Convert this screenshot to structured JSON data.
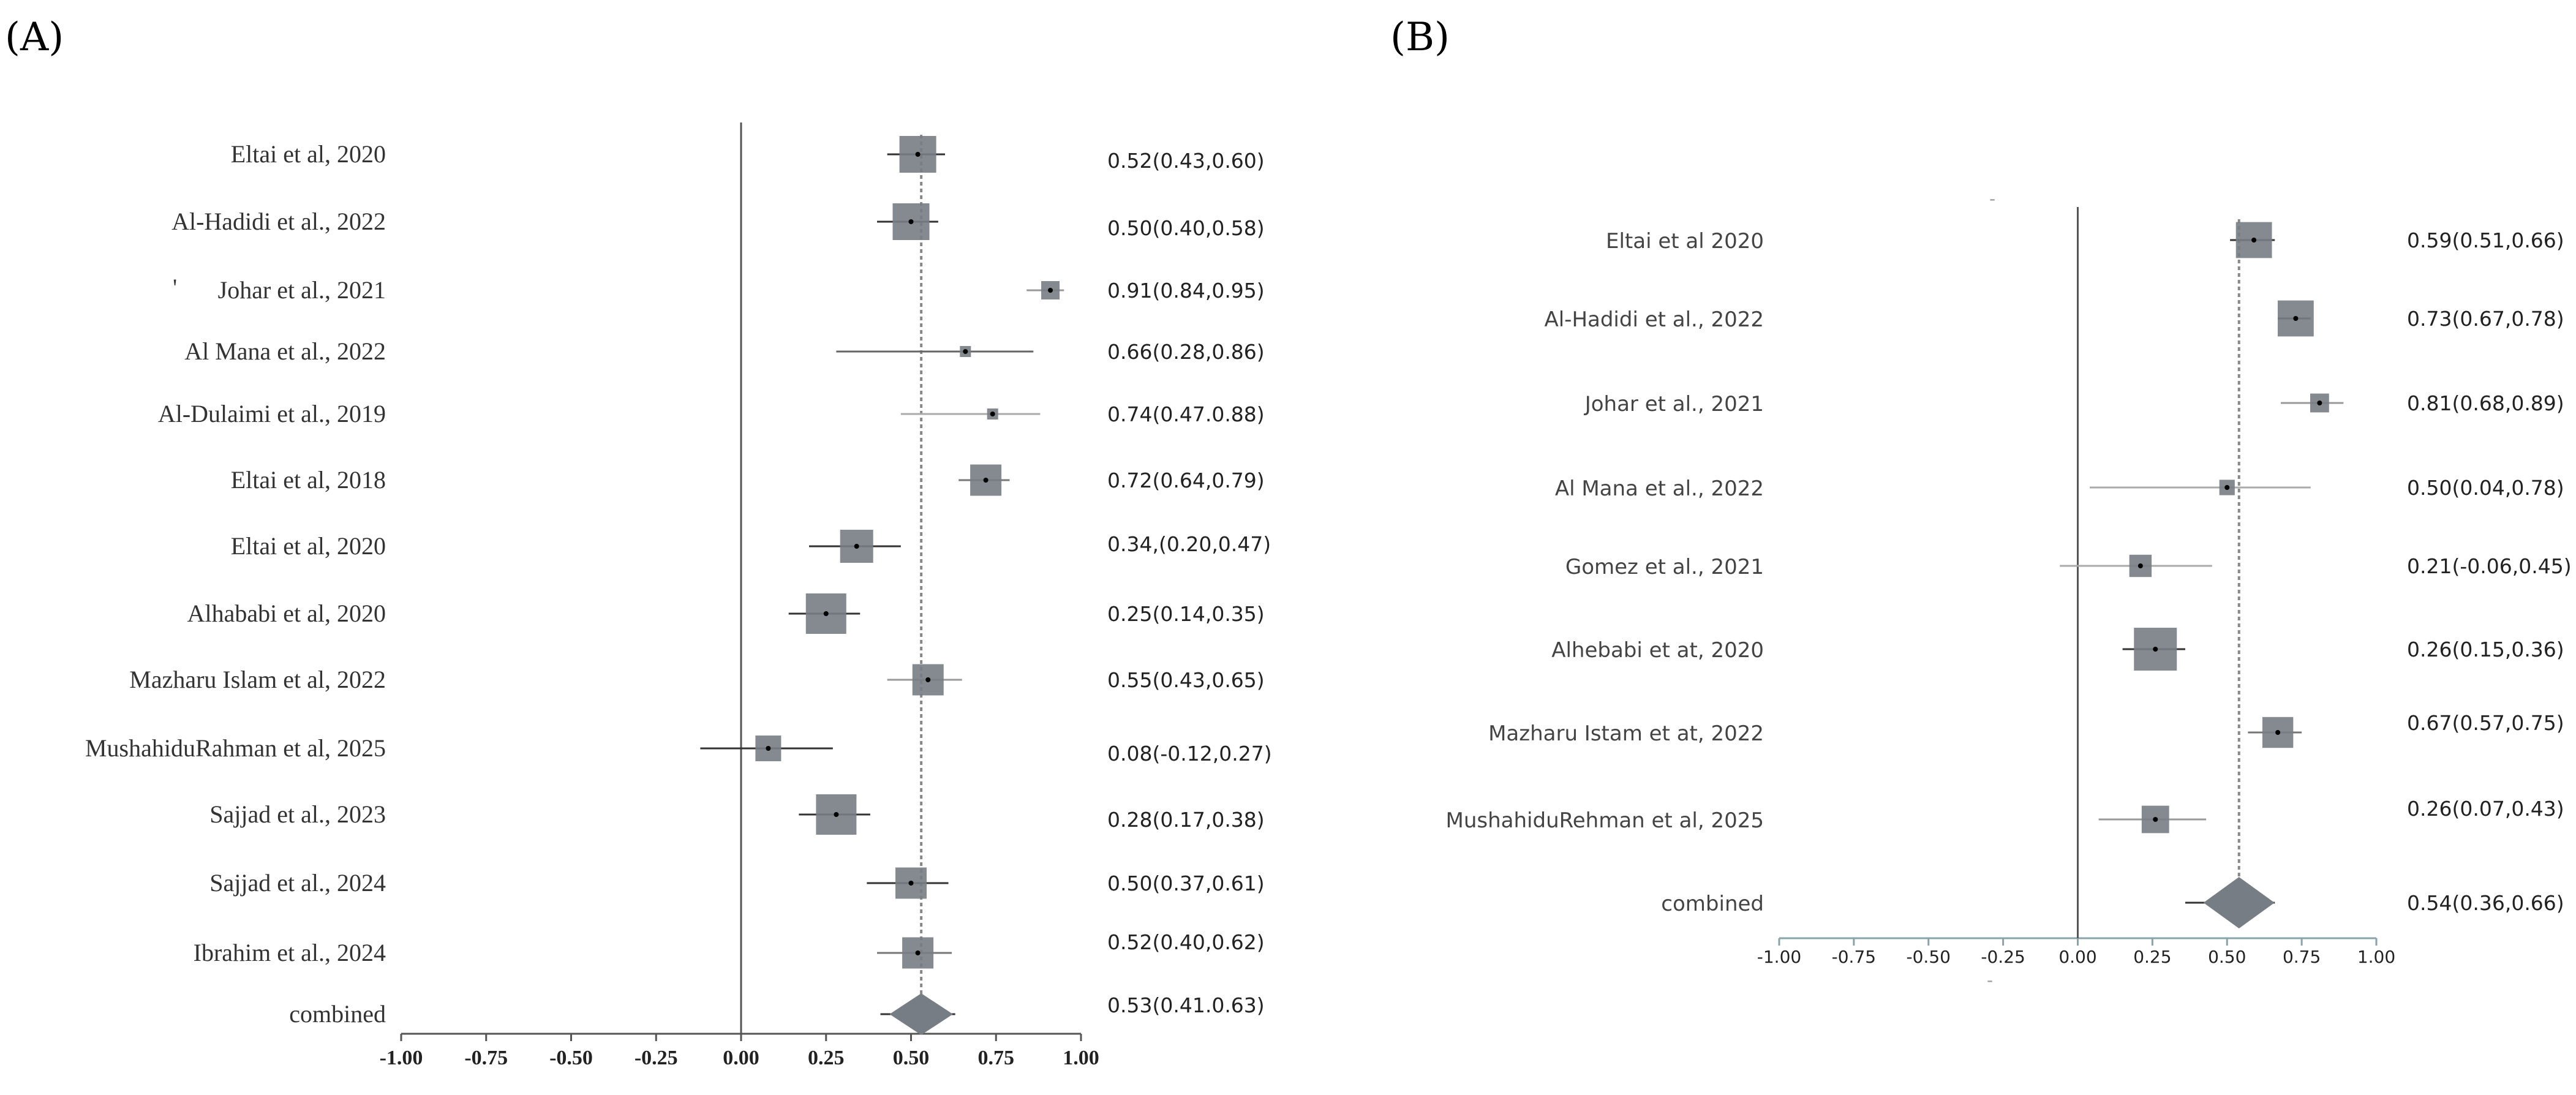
{
  "chart_data": [
    {
      "type": "forest",
      "panel": "(A)",
      "xlim": [
        -1.0,
        1.0
      ],
      "ticks": [
        "-1.00",
        "-0.75",
        "-0.50",
        "-0.25",
        "0.00",
        "0.25",
        "0.50",
        "0.75",
        "1.00"
      ],
      "tick_values": [
        -1.0,
        -0.75,
        -0.5,
        -0.25,
        0.0,
        0.25,
        0.5,
        0.75,
        1.0
      ],
      "pooled": 0.53,
      "rows": [
        {
          "study": "Eltai et al, 2020",
          "est": 0.52,
          "lo": 0.43,
          "hi": 0.6,
          "label": "0.52(0.43,0.60)",
          "weight": 1.0,
          "ci_color": "#333333"
        },
        {
          "study": "Al-Hadidi et al., 2022",
          "est": 0.5,
          "lo": 0.4,
          "hi": 0.58,
          "label": "0.50(0.40,0.58)",
          "weight": 1.0,
          "ci_color": "#333333"
        },
        {
          "study": "Johar et al., 2021",
          "est": 0.91,
          "lo": 0.84,
          "hi": 0.95,
          "label": "0.91(0.84,0.95)",
          "weight": 0.5,
          "ci_color": "#999999"
        },
        {
          "study": "Al Mana et al., 2022",
          "est": 0.66,
          "lo": 0.28,
          "hi": 0.86,
          "label": "0.66(0.28,0.86)",
          "weight": 0.3,
          "ci_color": "#666666"
        },
        {
          "study": "Al-Dulaimi et al., 2019",
          "est": 0.74,
          "lo": 0.47,
          "hi": 0.88,
          "label": "0.74(0.47.0.88)",
          "weight": 0.3,
          "ci_color": "#aaaaaa"
        },
        {
          "study": "Eltai et al, 2018",
          "est": 0.72,
          "lo": 0.64,
          "hi": 0.79,
          "label": "0.72(0.64,0.79)",
          "weight": 0.85,
          "ci_color": "#777777"
        },
        {
          "study": "Eltai et al, 2020",
          "est": 0.34,
          "lo": 0.2,
          "hi": 0.47,
          "label": "0.34,(0.20,0.47)",
          "weight": 0.9,
          "ci_color": "#333333"
        },
        {
          "study": "Alhababi et al, 2020",
          "est": 0.25,
          "lo": 0.14,
          "hi": 0.35,
          "label": "0.25(0.14,0.35)",
          "weight": 1.1,
          "ci_color": "#333333"
        },
        {
          "study": "Mazharu Islam et al, 2022",
          "est": 0.55,
          "lo": 0.43,
          "hi": 0.65,
          "label": "0.55(0.43,0.65)",
          "weight": 0.85,
          "ci_color": "#999999"
        },
        {
          "study": "MushahiduRahman et al, 2025",
          "est": 0.08,
          "lo": -0.12,
          "hi": 0.27,
          "label": "0.08(-0.12,0.27)",
          "weight": 0.7,
          "ci_color": "#333333"
        },
        {
          "study": "Sajjad et al., 2023",
          "est": 0.28,
          "lo": 0.17,
          "hi": 0.38,
          "label": "0.28(0.17,0.38)",
          "weight": 1.1,
          "ci_color": "#333333"
        },
        {
          "study": "Sajjad et al., 2024",
          "est": 0.5,
          "lo": 0.37,
          "hi": 0.61,
          "label": "0.50(0.37,0.61)",
          "weight": 0.85,
          "ci_color": "#333333"
        },
        {
          "study": "Ibrahim et al., 2024",
          "est": 0.52,
          "lo": 0.4,
          "hi": 0.62,
          "label": "0.52(0.40,0.62)",
          "weight": 0.85,
          "ci_color": "#777777"
        }
      ],
      "combined": {
        "study": "combined",
        "est": 0.53,
        "lo": 0.41,
        "hi": 0.63,
        "label": "0.53(0.41.0.63)"
      }
    },
    {
      "type": "forest",
      "panel": "(B)",
      "xlim": [
        -1.0,
        1.0
      ],
      "ticks": [
        "-1.00",
        "-0.75",
        "-0.50",
        "-0.25",
        "0.00",
        "0.25",
        "0.50",
        "0.75",
        "1.00"
      ],
      "tick_values": [
        -1.0,
        -0.75,
        -0.5,
        -0.25,
        0.0,
        0.25,
        0.5,
        0.75,
        1.0
      ],
      "pooled": 0.54,
      "rows": [
        {
          "study": "Eltai et al 2020",
          "est": 0.59,
          "lo": 0.51,
          "hi": 0.66,
          "label": "0.59(0.51,0.66)",
          "weight": 1.05,
          "ci_color": "#333333"
        },
        {
          "study": "Al-Hadidi et al., 2022",
          "est": 0.73,
          "lo": 0.67,
          "hi": 0.78,
          "label": "0.73(0.67,0.78)",
          "weight": 1.05,
          "ci_color": "#333333"
        },
        {
          "study": "Johar et al., 2021",
          "est": 0.81,
          "lo": 0.68,
          "hi": 0.89,
          "label": "0.81(0.68,0.89)",
          "weight": 0.55,
          "ci_color": "#999999"
        },
        {
          "study": "Al Mana et al., 2022",
          "est": 0.5,
          "lo": 0.04,
          "hi": 0.78,
          "label": "0.50(0.04,0.78)",
          "weight": 0.45,
          "ci_color": "#aaaaaa"
        },
        {
          "study": "Gomez et al., 2021",
          "est": 0.21,
          "lo": -0.06,
          "hi": 0.45,
          "label": "0.21(-0.06,0.45)",
          "weight": 0.65,
          "ci_color": "#aaaaaa"
        },
        {
          "study": "Alhebabi et at, 2020",
          "est": 0.26,
          "lo": 0.15,
          "hi": 0.36,
          "label": "0.26(0.15,0.36)",
          "weight": 1.25,
          "ci_color": "#333333"
        },
        {
          "study": "Mazharu Istam et at, 2022",
          "est": 0.67,
          "lo": 0.57,
          "hi": 0.75,
          "label": "0.67(0.57,0.75)",
          "weight": 0.9,
          "ci_color": "#777777"
        },
        {
          "study": "MushahiduRehman et al, 2025",
          "est": 0.26,
          "lo": 0.07,
          "hi": 0.43,
          "label": "0.26(0.07,0.43)",
          "weight": 0.8,
          "ci_color": "#999999"
        }
      ],
      "combined": {
        "study": "combined",
        "est": 0.54,
        "lo": 0.36,
        "hi": 0.66,
        "label": "0.54(0.36,0.66)"
      }
    }
  ],
  "stray_marks": [
    "'",
    "-",
    "-"
  ]
}
